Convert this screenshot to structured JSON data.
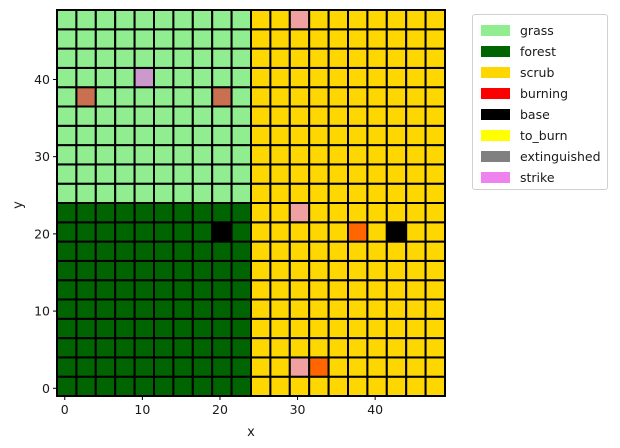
{
  "chart_data": {
    "type": "heatmap",
    "xlabel": "x",
    "ylabel": "y",
    "xticks": [
      0,
      10,
      20,
      30,
      40
    ],
    "yticks": [
      0,
      10,
      20,
      30,
      40
    ],
    "xlim": [
      -1,
      49
    ],
    "ylim": [
      -1,
      49
    ],
    "cell_size": 2.5,
    "n_cols": 20,
    "n_rows": 20,
    "grid_line_color": "#000000",
    "categories": [
      {
        "name": "grass",
        "color": "#90ee90"
      },
      {
        "name": "forest",
        "color": "#006400"
      },
      {
        "name": "scrub",
        "color": "#ffd700"
      },
      {
        "name": "burning",
        "color": "#ff0000"
      },
      {
        "name": "base",
        "color": "#000000"
      },
      {
        "name": "to_burn",
        "color": "#ffff00"
      },
      {
        "name": "extinguished",
        "color": "#808080"
      },
      {
        "name": "strike",
        "color": "#ee82ee"
      }
    ],
    "regions": [
      {
        "state": "grass",
        "cols": [
          0,
          9
        ],
        "rows": [
          10,
          19
        ]
      },
      {
        "state": "forest",
        "cols": [
          0,
          9
        ],
        "rows": [
          0,
          9
        ]
      },
      {
        "state": "scrub",
        "cols": [
          10,
          19
        ],
        "rows": [
          0,
          19
        ]
      }
    ],
    "special_cells": [
      {
        "col": 1,
        "row": 15,
        "color": "#c87050"
      },
      {
        "col": 8,
        "row": 15,
        "color": "#c87050"
      },
      {
        "col": 4,
        "row": 16,
        "color": "#cc99cc"
      },
      {
        "col": 12,
        "row": 19,
        "color": "#f0a0a0"
      },
      {
        "col": 12,
        "row": 9,
        "color": "#f0a0a0"
      },
      {
        "col": 8,
        "row": 8,
        "color": "#000000"
      },
      {
        "col": 15,
        "row": 8,
        "color": "#ff6600"
      },
      {
        "col": 17,
        "row": 8,
        "color": "#000000"
      },
      {
        "col": 12,
        "row": 1,
        "color": "#f0a0a0"
      },
      {
        "col": 13,
        "row": 1,
        "color": "#ff6600"
      }
    ]
  }
}
